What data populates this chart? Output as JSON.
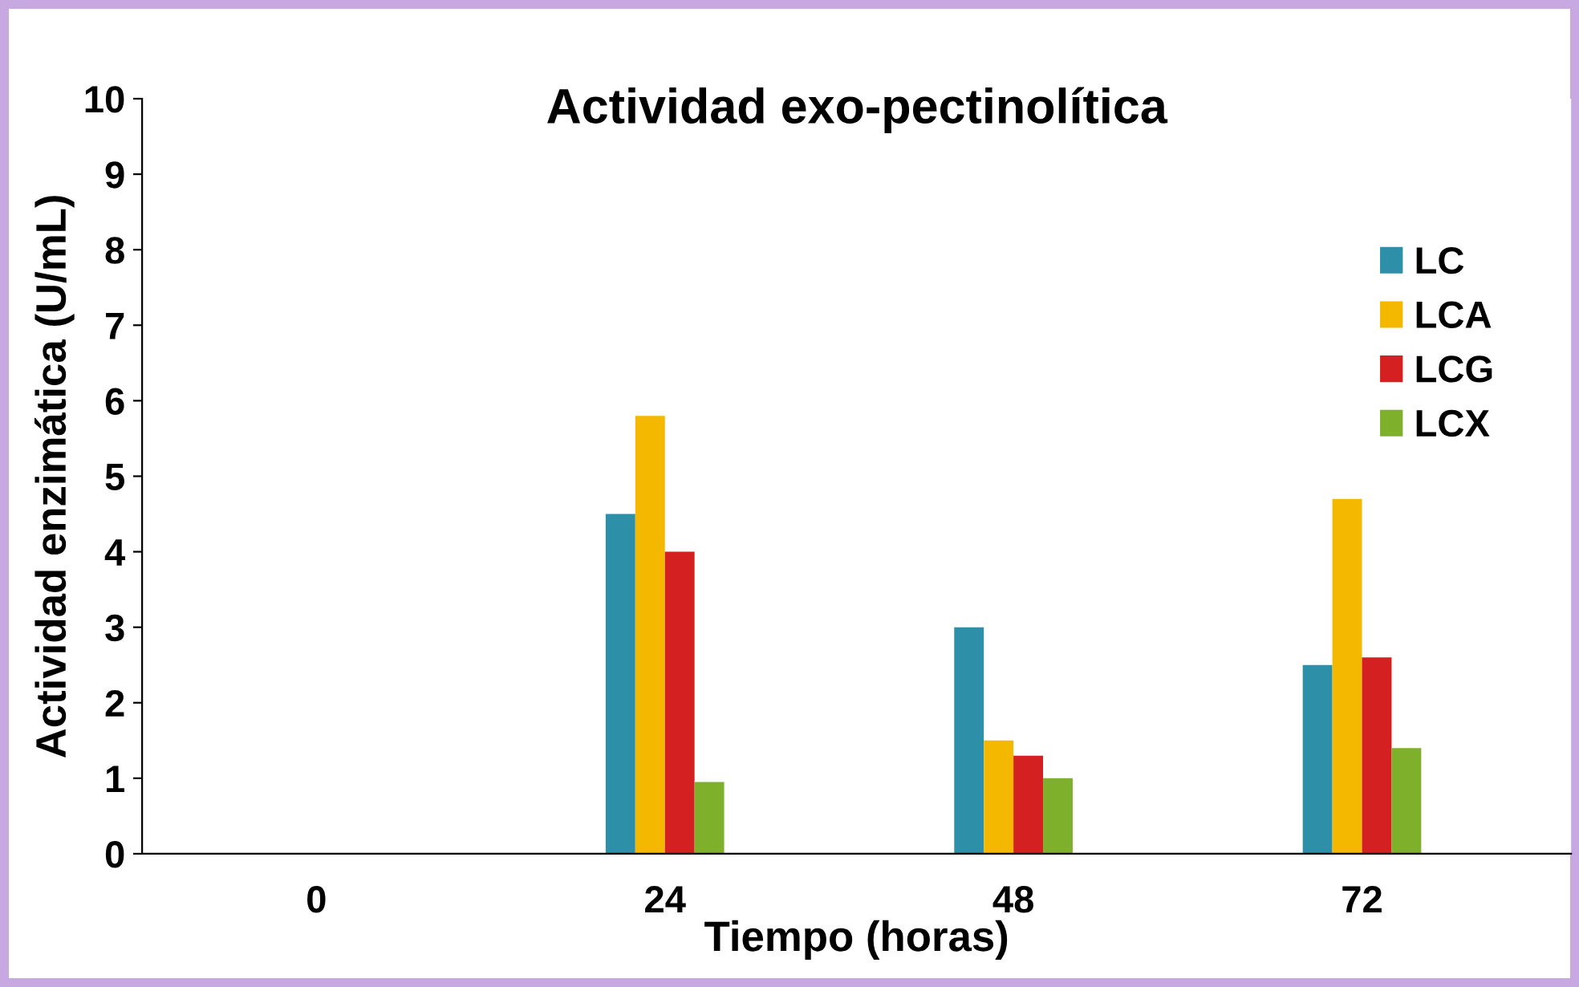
{
  "chart_data": {
    "type": "bar",
    "title": "Actividad exo-pectinolítica",
    "xlabel": "Tiempo (horas)",
    "ylabel": "Actividad enzimática (U/mL)",
    "categories": [
      "0",
      "24",
      "48",
      "72"
    ],
    "series": [
      {
        "name": "LC",
        "color": "#2e8fa8",
        "values": [
          null,
          4.5,
          3.0,
          2.5
        ]
      },
      {
        "name": "LCA",
        "color": "#f5b800",
        "values": [
          null,
          5.8,
          1.5,
          4.7
        ]
      },
      {
        "name": "LCG",
        "color": "#d42020",
        "values": [
          null,
          4.0,
          1.3,
          2.6
        ]
      },
      {
        "name": "LCX",
        "color": "#7fb02c",
        "values": [
          null,
          0.95,
          1.0,
          1.4
        ]
      }
    ],
    "ylim": [
      0,
      10
    ],
    "yticks": [
      0,
      1,
      2,
      3,
      4,
      5,
      6,
      7,
      8,
      9,
      10
    ],
    "grid": false,
    "legend": "top right"
  }
}
